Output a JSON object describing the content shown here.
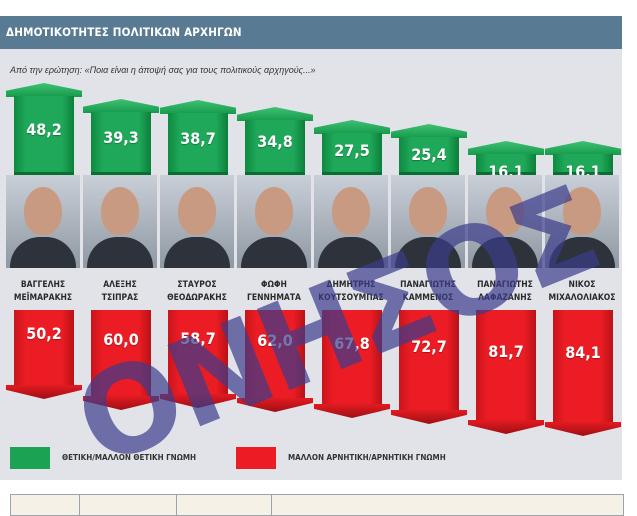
{
  "header": {
    "title": "ΔΗΜΟΤΙΚΟΤΗΤΕΣ ΠΟΛΙΤΙΚΩΝ ΑΡΧΗΓΩΝ",
    "subtitle": "Από την ερώτηση: «Ποια είναι η άποψή σας για τους πολιτικούς αρχηγούς...»"
  },
  "leaders": [
    {
      "first": "ΒΑΓΓΕΛΗΣ",
      "last": "ΜΕΪΜΑΡΑΚΗΣ",
      "positive": "48,2",
      "negative": "50,2"
    },
    {
      "first": "ΑΛΕΞΗΣ",
      "last": "ΤΣΙΠΡΑΣ",
      "positive": "39,3",
      "negative": "60,0"
    },
    {
      "first": "ΣΤΑΥΡΟΣ",
      "last": "ΘΕΟΔΩΡΑΚΗΣ",
      "positive": "38,7",
      "negative": "58,7"
    },
    {
      "first": "ΦΩΦΗ",
      "last": "ΓΕΝΝΗΜΑΤΑ",
      "positive": "34,8",
      "negative": "62,0"
    },
    {
      "first": "ΔΗΜΗΤΡΗΣ",
      "last": "ΚΟΥΤΣΟΥΜΠΑΣ",
      "positive": "27,5",
      "negative": "67,8"
    },
    {
      "first": "ΠΑΝΑΓΙΩΤΗΣ",
      "last": "ΚΑΜΜΕΝΟΣ",
      "positive": "25,4",
      "negative": "72,7"
    },
    {
      "first": "ΠΑΝΑΓΙΩΤΗΣ",
      "last": "ΛΑΦΑΖΑΝΗΣ",
      "positive": "16,1",
      "negative": "81,7"
    },
    {
      "first": "ΝΙΚΟΣ",
      "last": "ΜΙΧΑΛΟΛΙΑΚΟΣ",
      "positive": "16,1",
      "negative": "84,1"
    }
  ],
  "legend": {
    "positive_label": "ΘΕΤΙΚΗ/ΜΑΛΛΟΝ ΘΕΤΙΚΗ ΓΝΩΜΗ",
    "negative_label": "ΜΑΛΛΟΝ ΑΡΝΗΤΙΚΗ/ΑΡΝΗΤΙΚΗ ΓΝΩΜΗ",
    "positive_color": "#1ba353",
    "negative_color": "#ec1c24"
  },
  "watermark": "ΟΝΗΣΟΣ",
  "colors": {
    "header_bg": "#587a92",
    "panel_bg": "#e1e3e9",
    "positive": "#1ba353",
    "negative": "#ec1c24"
  },
  "chart_data": {
    "type": "bar",
    "title": "ΔΗΜΟΤΙΚΟΤΗΤΕΣ ΠΟΛΙΤΙΚΩΝ ΑΡΧΗΓΩΝ",
    "subtitle": "Από την ερώτηση: «Ποια είναι η άποψή σας για τους πολιτικούς αρχηγούς...»",
    "categories": [
      "ΒΑΓΓΕΛΗΣ ΜΕΪΜΑΡΑΚΗΣ",
      "ΑΛΕΞΗΣ ΤΣΙΠΡΑΣ",
      "ΣΤΑΥΡΟΣ ΘΕΟΔΩΡΑΚΗΣ",
      "ΦΩΦΗ ΓΕΝΝΗΜΑΤΑ",
      "ΔΗΜΗΤΡΗΣ ΚΟΥΤΣΟΥΜΠΑΣ",
      "ΠΑΝΑΓΙΩΤΗΣ ΚΑΜΜΕΝΟΣ",
      "ΠΑΝΑΓΙΩΤΗΣ ΛΑΦΑΖΑΝΗΣ",
      "ΝΙΚΟΣ ΜΙΧΑΛΟΛΙΑΚΟΣ"
    ],
    "series": [
      {
        "name": "ΘΕΤΙΚΗ/ΜΑΛΛΟΝ ΘΕΤΙΚΗ ΓΝΩΜΗ",
        "color": "#1ba353",
        "values": [
          48.2,
          39.3,
          38.7,
          34.8,
          27.5,
          25.4,
          16.1,
          16.1
        ]
      },
      {
        "name": "ΜΑΛΛΟΝ ΑΡΝΗΤΙΚΗ/ΑΡΝΗΤΙΚΗ ΓΝΩΜΗ",
        "color": "#ec1c24",
        "values": [
          50.2,
          60.0,
          58.7,
          62.0,
          67.8,
          72.7,
          81.7,
          84.1
        ]
      }
    ],
    "xlabel": "",
    "ylabel": "%",
    "legend_position": "bottom",
    "grid": false
  }
}
